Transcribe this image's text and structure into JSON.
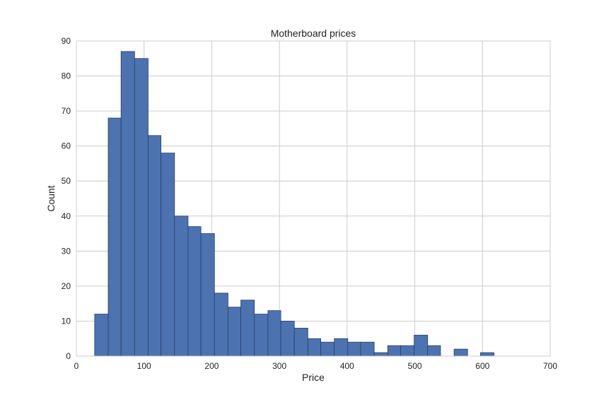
{
  "chart_data": {
    "type": "bar",
    "title": "Motherboard prices",
    "xlabel": "Price",
    "ylabel": "Count",
    "xlim": [
      0,
      700
    ],
    "ylim": [
      0,
      90
    ],
    "xticks": [
      0,
      100,
      200,
      300,
      400,
      500,
      600,
      700
    ],
    "yticks": [
      0,
      10,
      20,
      30,
      40,
      50,
      60,
      70,
      80,
      90
    ],
    "grid": true,
    "bar_color": "#4c72b0",
    "bar_edge_color": "#2a3f66",
    "bins": [
      {
        "start": 27,
        "end": 47,
        "count": 12
      },
      {
        "start": 47,
        "end": 66,
        "count": 68
      },
      {
        "start": 66,
        "end": 86,
        "count": 87
      },
      {
        "start": 86,
        "end": 106,
        "count": 85
      },
      {
        "start": 106,
        "end": 125,
        "count": 63
      },
      {
        "start": 125,
        "end": 145,
        "count": 58
      },
      {
        "start": 145,
        "end": 165,
        "count": 40
      },
      {
        "start": 165,
        "end": 184,
        "count": 37
      },
      {
        "start": 184,
        "end": 204,
        "count": 35
      },
      {
        "start": 204,
        "end": 224,
        "count": 18
      },
      {
        "start": 224,
        "end": 243,
        "count": 14
      },
      {
        "start": 243,
        "end": 263,
        "count": 16
      },
      {
        "start": 263,
        "end": 283,
        "count": 12
      },
      {
        "start": 283,
        "end": 302,
        "count": 13
      },
      {
        "start": 302,
        "end": 322,
        "count": 10
      },
      {
        "start": 322,
        "end": 342,
        "count": 8
      },
      {
        "start": 342,
        "end": 361,
        "count": 5
      },
      {
        "start": 361,
        "end": 381,
        "count": 4
      },
      {
        "start": 381,
        "end": 401,
        "count": 5
      },
      {
        "start": 401,
        "end": 420,
        "count": 4
      },
      {
        "start": 420,
        "end": 440,
        "count": 4
      },
      {
        "start": 440,
        "end": 460,
        "count": 1
      },
      {
        "start": 460,
        "end": 479,
        "count": 3
      },
      {
        "start": 479,
        "end": 499,
        "count": 3
      },
      {
        "start": 499,
        "end": 519,
        "count": 6
      },
      {
        "start": 519,
        "end": 538,
        "count": 3
      },
      {
        "start": 538,
        "end": 558,
        "count": 0
      },
      {
        "start": 558,
        "end": 578,
        "count": 2
      },
      {
        "start": 578,
        "end": 597,
        "count": 0
      },
      {
        "start": 597,
        "end": 617,
        "count": 1
      }
    ]
  }
}
